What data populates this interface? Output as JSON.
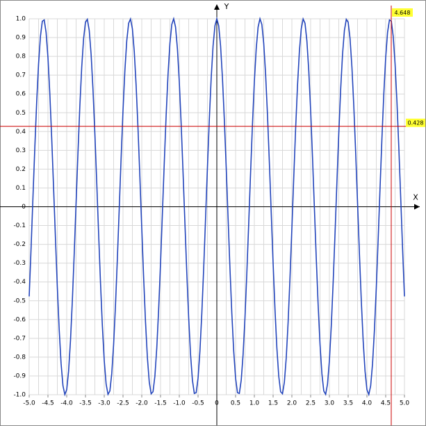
{
  "chart_data": {
    "type": "line",
    "x_label": "X",
    "y_label": "Y",
    "xlim": [
      -5,
      5
    ],
    "ylim": [
      -1,
      1
    ],
    "grid": true,
    "xgrid_step": 0.25,
    "xticks": [
      {
        "value": -5,
        "label": "-5.0"
      },
      -4.5,
      {
        "value": -4,
        "label": "-4.0"
      },
      -3.5,
      {
        "value": -3,
        "label": "-3.0"
      },
      -2.5,
      {
        "value": -2,
        "label": "-2.0"
      },
      -1.5,
      {
        "value": -1,
        "label": "-1.0"
      },
      -0.5,
      0,
      0.5,
      {
        "value": 1,
        "label": "1.0"
      },
      1.5,
      {
        "value": 2,
        "label": "2.0"
      },
      2.5,
      {
        "value": 3,
        "label": "3.0"
      },
      3.5,
      {
        "value": 4,
        "label": "4.0"
      },
      4.5,
      {
        "value": 5,
        "label": "5.0"
      }
    ],
    "yticks": [
      {
        "value": 1,
        "label": "1.0"
      },
      0.9,
      0.8,
      0.7,
      0.6,
      0.5,
      0.4,
      0.3,
      0.2,
      0.1,
      0,
      -0.1,
      -0.2,
      -0.3,
      -0.4,
      -0.5,
      -0.6,
      -0.7,
      -0.8,
      -0.9,
      {
        "value": -1,
        "label": "-1.0"
      }
    ],
    "crosshair": {
      "x": 4.648,
      "y": 0.428,
      "color": "#cc0000"
    },
    "x": [
      -5,
      -4.95,
      -4.9,
      -4.85,
      -4.8,
      -4.75,
      -4.7,
      -4.65,
      -4.6,
      -4.55,
      -4.5,
      -4.45,
      -4.4,
      -4.35,
      -4.3,
      -4.25,
      -4.2,
      -4.15,
      -4.1,
      -4.05,
      -4,
      -3.95,
      -3.9,
      -3.85,
      -3.8,
      -3.75,
      -3.7,
      -3.65,
      -3.6,
      -3.55,
      -3.5,
      -3.45,
      -3.4,
      -3.35,
      -3.3,
      -3.25,
      -3.2,
      -3.15,
      -3.1,
      -3.05,
      -3,
      -2.95,
      -2.9,
      -2.85,
      -2.8,
      -2.75,
      -2.7,
      -2.65,
      -2.6,
      -2.55,
      -2.5,
      -2.45,
      -2.4,
      -2.35,
      -2.3,
      -2.25,
      -2.2,
      -2.15,
      -2.1,
      -2.05,
      -2,
      -1.95,
      -1.9,
      -1.85,
      -1.8,
      -1.75,
      -1.7,
      -1.65,
      -1.6,
      -1.55,
      -1.5,
      -1.45,
      -1.4,
      -1.35,
      -1.3,
      -1.25,
      -1.2,
      -1.15,
      -1.1,
      -1.05,
      -1,
      -0.95,
      -0.9,
      -0.85,
      -0.8,
      -0.75,
      -0.7,
      -0.65,
      -0.6,
      -0.55,
      -0.5,
      -0.45,
      -0.4,
      -0.35,
      -0.3,
      -0.25,
      -0.2,
      -0.15,
      -0.1,
      -0.05,
      0,
      0.05,
      0.1,
      0.15,
      0.2,
      0.25,
      0.3,
      0.35,
      0.4,
      0.45,
      0.5,
      0.55,
      0.6,
      0.65,
      0.7,
      0.75,
      0.8,
      0.85,
      0.9,
      0.95,
      1,
      1.05,
      1.1,
      1.15,
      1.2,
      1.25,
      1.3,
      1.35,
      1.4,
      1.45,
      1.5,
      1.55,
      1.6,
      1.65,
      1.7,
      1.75,
      1.8,
      1.85,
      1.9,
      1.95,
      2,
      2.05,
      2.1,
      2.15,
      2.2,
      2.25,
      2.3,
      2.35,
      2.4,
      2.45,
      2.5,
      2.55,
      2.6,
      2.65,
      2.7,
      2.75,
      2.8,
      2.85,
      2.9,
      2.95,
      3,
      3.05,
      3.1,
      3.15,
      3.2,
      3.25,
      3.3,
      3.35,
      3.4,
      3.45,
      3.5,
      3.55,
      3.6,
      3.65,
      3.7,
      3.75,
      3.8,
      3.85,
      3.9,
      3.95,
      4,
      4.05,
      4.1,
      4.15,
      4.2,
      4.25,
      4.3,
      4.35,
      4.4,
      4.45,
      4.5,
      4.55,
      4.6,
      4.65,
      4.7,
      4.75,
      4.8,
      4.85,
      4.9,
      4.95,
      5
    ],
    "series": [
      {
        "color": "#2244bb",
        "values": [
          -0.477,
          -0.222,
          0.048,
          0.314,
          0.558,
          0.76,
          0.907,
          0.987,
          0.994,
          0.928,
          0.794,
          0.602,
          0.365,
          0.101,
          -0.169,
          -0.429,
          -0.655,
          -0.834,
          -0.952,
          -0.999,
          -0.973,
          -0.875,
          -0.714,
          -0.5,
          -0.249,
          0.021,
          0.288,
          0.536,
          0.743,
          0.895,
          0.982,
          0.997,
          0.938,
          0.811,
          0.624,
          0.39,
          0.129,
          -0.142,
          -0.403,
          -0.634,
          -0.818,
          -0.943,
          -0.998,
          -0.98,
          -0.888,
          -0.732,
          -0.523,
          -0.275,
          -0.007,
          0.262,
          0.512,
          0.724,
          0.883,
          0.976,
          0.999,
          0.947,
          0.826,
          0.644,
          0.415,
          0.156,
          -0.115,
          -0.377,
          -0.614,
          -0.803,
          -0.933,
          -0.995,
          -0.984,
          -0.901,
          -0.751,
          -0.546,
          -0.301,
          -0.034,
          0.236,
          0.489,
          0.705,
          0.869,
          0.97,
          1.0,
          0.956,
          0.841,
          0.665,
          0.44,
          0.182,
          -0.088,
          -0.352,
          -0.591,
          -0.786,
          -0.923,
          -0.993,
          -0.989,
          -0.912,
          -0.768,
          -0.568,
          -0.327,
          -0.061,
          0.209,
          0.464,
          0.685,
          0.856,
          0.963,
          1,
          0.963,
          0.856,
          0.685,
          0.464,
          0.209,
          -0.061,
          -0.327,
          -0.568,
          -0.768,
          -0.912,
          -0.989,
          -0.993,
          -0.923,
          -0.786,
          -0.591,
          -0.352,
          -0.088,
          0.182,
          0.44,
          0.665,
          0.841,
          0.956,
          1.0,
          0.97,
          0.869,
          0.705,
          0.489,
          0.236,
          -0.034,
          -0.301,
          -0.546,
          -0.751,
          -0.901,
          -0.984,
          -0.995,
          -0.933,
          -0.803,
          -0.614,
          -0.377,
          -0.115,
          0.156,
          0.415,
          0.644,
          0.826,
          0.947,
          0.999,
          0.976,
          0.883,
          0.724,
          0.512,
          0.262,
          -0.007,
          -0.275,
          -0.523,
          -0.732,
          -0.888,
          -0.98,
          -0.998,
          -0.943,
          -0.818,
          -0.634,
          -0.403,
          -0.142,
          0.129,
          0.39,
          0.624,
          0.811,
          0.938,
          0.997,
          0.982,
          0.895,
          0.743,
          0.536,
          0.288,
          0.021,
          -0.249,
          -0.5,
          -0.714,
          -0.875,
          -0.973,
          -0.999,
          -0.952,
          -0.834,
          -0.655,
          -0.429,
          -0.169,
          0.101,
          0.365,
          0.602,
          0.794,
          0.928,
          0.994,
          0.987,
          0.907,
          0.76,
          0.558,
          0.314,
          0.048,
          -0.222,
          -0.477
        ]
      }
    ]
  }
}
